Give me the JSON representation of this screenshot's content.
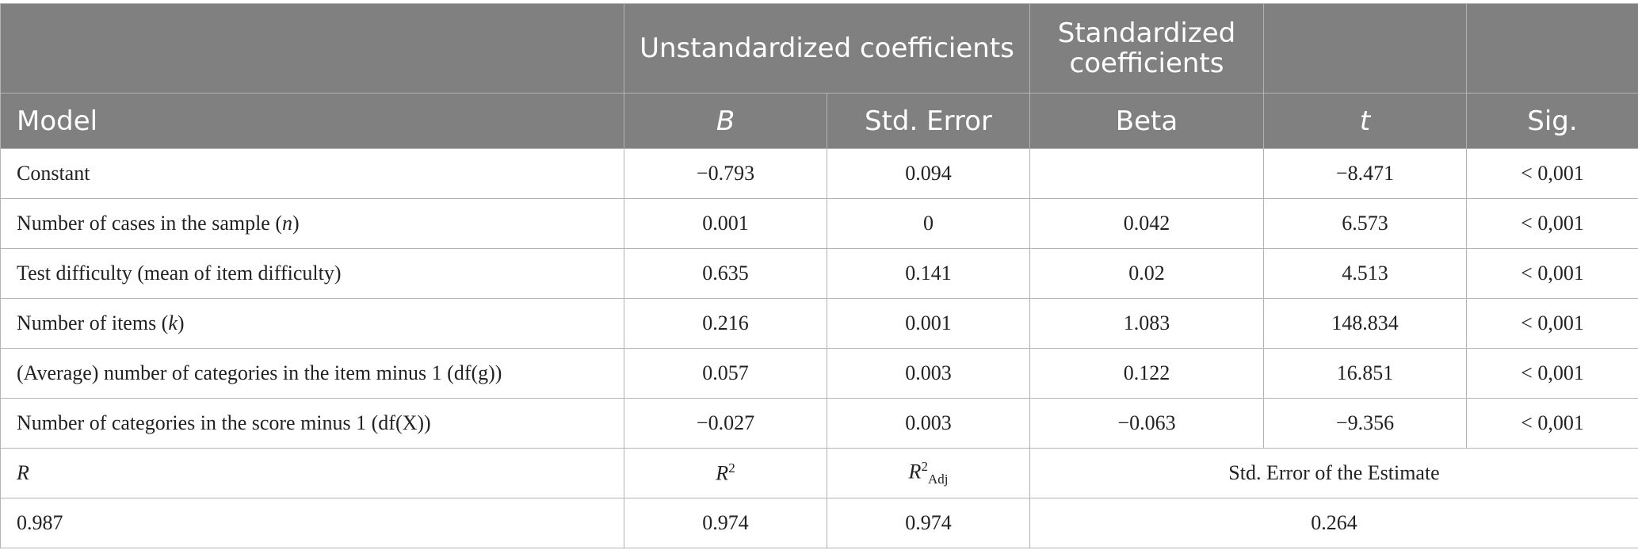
{
  "header": {
    "group_unstd": "Unstandardized coefficients",
    "group_std": "Standardized coefficients",
    "model": "Model",
    "b": "B",
    "std_error": "Std. Error",
    "beta": "Beta",
    "t": "t",
    "sig": "Sig."
  },
  "rows": [
    {
      "label_pre": "Constant",
      "label_var": "",
      "label_post": "",
      "b": "−0.793",
      "se": "0.094",
      "beta": "",
      "t": "−8.471",
      "sig": "< 0,001"
    },
    {
      "label_pre": "Number of cases in the sample (",
      "label_var": "n",
      "label_post": ")",
      "b": "0.001",
      "se": "0",
      "beta": "0.042",
      "t": "6.573",
      "sig": "< 0,001"
    },
    {
      "label_pre": "Test difficulty (mean of item difficulty)",
      "label_var": "",
      "label_post": "",
      "b": "0.635",
      "se": "0.141",
      "beta": "0.02",
      "t": "4.513",
      "sig": "< 0,001"
    },
    {
      "label_pre": "Number of items (",
      "label_var": "k",
      "label_post": ")",
      "b": "0.216",
      "se": "0.001",
      "beta": "1.083",
      "t": "148.834",
      "sig": "< 0,001"
    },
    {
      "label_pre": "(Average) number of categories in the item minus 1 (df(g))",
      "label_var": "",
      "label_post": "",
      "b": "0.057",
      "se": "0.003",
      "beta": "0.122",
      "t": "16.851",
      "sig": "< 0,001"
    },
    {
      "label_pre": "Number of categories in the score minus 1 (df(X))",
      "label_var": "",
      "label_post": "",
      "b": "−0.027",
      "se": "0.003",
      "beta": "−0.063",
      "t": "−9.356",
      "sig": "< 0,001"
    }
  ],
  "summary_header": {
    "r": "R",
    "r2": "R",
    "r2_sup": "2",
    "r2adj": "R",
    "r2adj_sup": "2",
    "r2adj_sub": "Adj",
    "see": "Std. Error of the Estimate"
  },
  "summary": {
    "r": "0.987",
    "r2": "0.974",
    "r2adj": "0.974",
    "see": "0.264"
  }
}
